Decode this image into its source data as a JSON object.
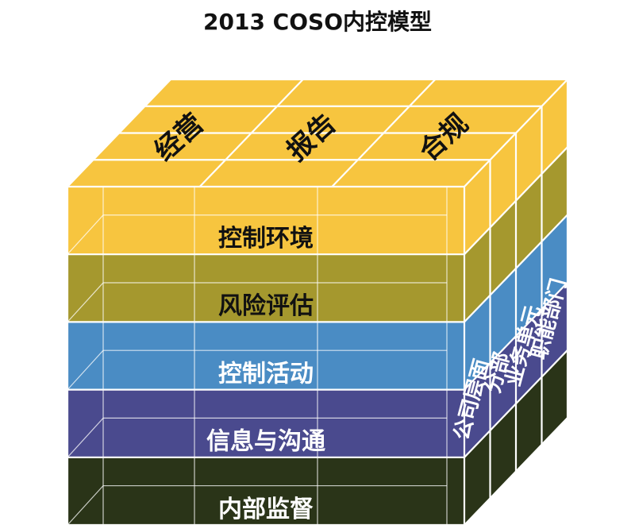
{
  "title": "2013 COSO内控模型",
  "objectives": [
    "经营",
    "报告",
    "合规"
  ],
  "components": [
    {
      "label": "控制环境",
      "color": "#f7c53f",
      "side": "#f7c53f",
      "text_color": "#111111"
    },
    {
      "label": "风险评估",
      "color": "#a5982e",
      "side": "#a5982e",
      "text_color": "#111111"
    },
    {
      "label": "控制活动",
      "color": "#4a8cc4",
      "side": "#4a8cc4",
      "text_color": "#ffffff"
    },
    {
      "label": "信息与沟通",
      "color": "#4a4a8e",
      "side": "#4a4a8e",
      "text_color": "#ffffff"
    },
    {
      "label": "内部监督",
      "color": "#2a3418",
      "side": "#2a3418",
      "text_color": "#ffffff"
    }
  ],
  "organization_levels": [
    "公司层面",
    "分部",
    "业务单元",
    "职能部门"
  ],
  "colors": {
    "grid_line": "#ffffff",
    "top_face": "#f7c53f"
  }
}
